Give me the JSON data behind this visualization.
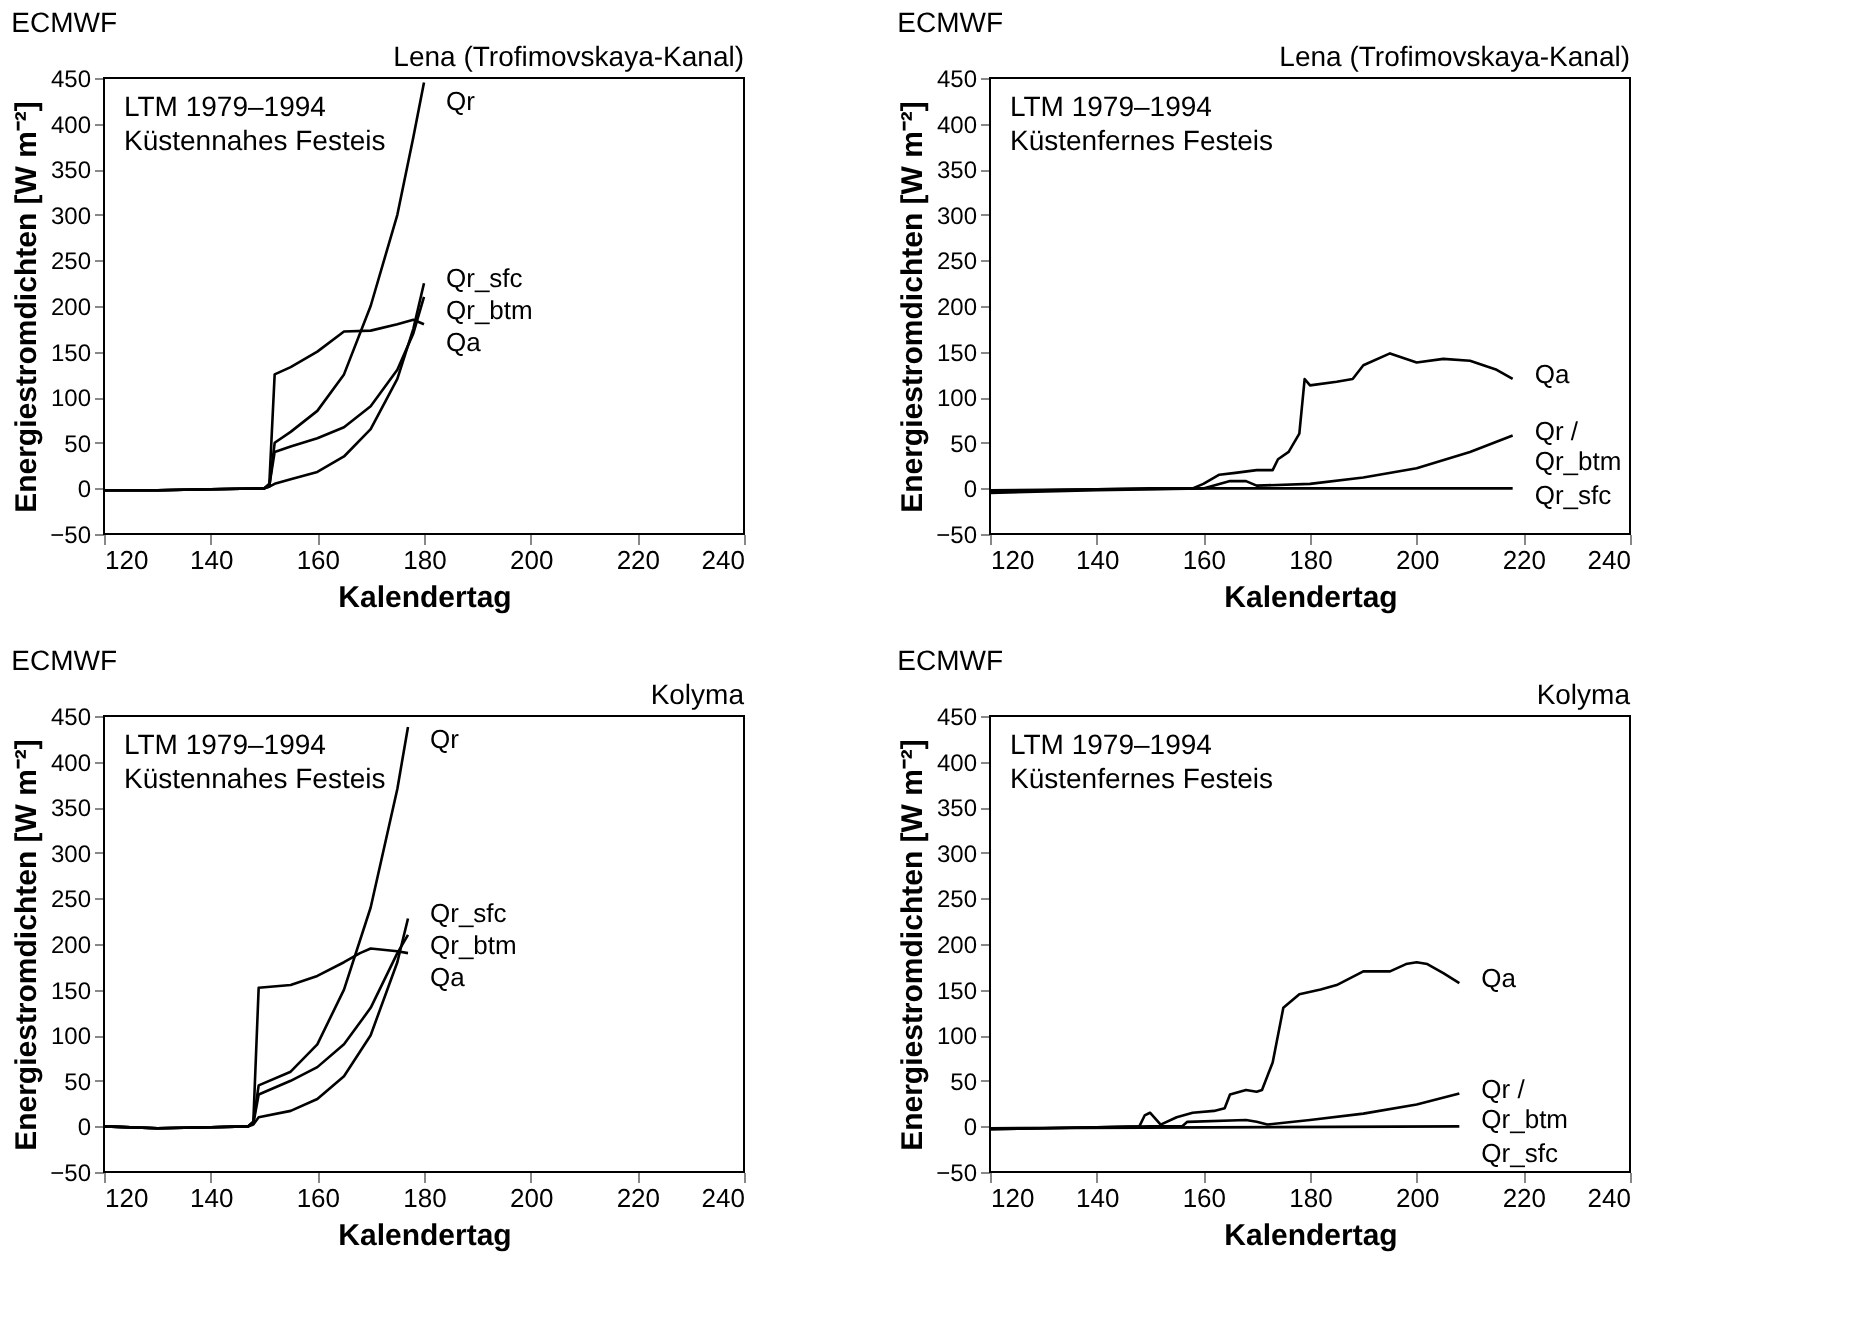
{
  "chart_data": [
    {
      "type": "line",
      "title": "ECMWF",
      "subtitle": "Lena (Trofimovskaya-Kanal)",
      "xlabel": "Kalendertag",
      "ylabel": "Energiestromdichten [W m⁻²]",
      "annotations": [
        "LTM 1979–1994",
        "Küstennahes Festeis"
      ],
      "xlim": [
        120,
        240
      ],
      "ylim": [
        -50,
        450
      ],
      "xticks": [
        120,
        140,
        160,
        180,
        200,
        220,
        240
      ],
      "yticks": [
        -50,
        0,
        50,
        100,
        150,
        200,
        250,
        300,
        350,
        400,
        450
      ],
      "grid": false,
      "legend": false,
      "series": [
        {
          "name": "Qr",
          "color": "#000000",
          "x": [
            120,
            130,
            140,
            150,
            151,
            152,
            155,
            160,
            165,
            170,
            175,
            178,
            180
          ],
          "values": [
            -2,
            -2,
            -1,
            0,
            2,
            50,
            62,
            85,
            125,
            200,
            300,
            385,
            445
          ]
        },
        {
          "name": "Qa",
          "color": "#000000",
          "x": [
            120,
            130,
            140,
            150,
            151,
            152,
            155,
            160,
            165,
            170,
            175,
            178,
            180
          ],
          "values": [
            -2,
            -2,
            -1,
            0,
            5,
            125,
            133,
            150,
            172,
            173,
            180,
            185,
            180
          ]
        },
        {
          "name": "Qr_btm",
          "color": "#000000",
          "x": [
            120,
            130,
            140,
            150,
            151,
            152,
            155,
            160,
            165,
            170,
            175,
            178,
            180
          ],
          "values": [
            -2,
            -2,
            -1,
            0,
            3,
            40,
            46,
            55,
            67,
            90,
            130,
            170,
            210
          ]
        },
        {
          "name": "Qr_sfc",
          "color": "#000000",
          "x": [
            120,
            130,
            140,
            150,
            151,
            152,
            155,
            160,
            165,
            170,
            175,
            178,
            180
          ],
          "values": [
            -2,
            -2,
            -1,
            0,
            2,
            5,
            10,
            18,
            35,
            65,
            120,
            175,
            225
          ]
        }
      ]
    },
    {
      "type": "line",
      "title": "ECMWF",
      "subtitle": "Lena (Trofimovskaya-Kanal)",
      "xlabel": "Kalendertag",
      "ylabel": "Energiestromdichten [W m⁻²]",
      "annotations": [
        "LTM 1979–1994",
        "Küstenfernes Festeis"
      ],
      "xlim": [
        120,
        240
      ],
      "ylim": [
        -50,
        450
      ],
      "xticks": [
        120,
        140,
        160,
        180,
        200,
        220,
        240
      ],
      "yticks": [
        -50,
        0,
        50,
        100,
        150,
        200,
        250,
        300,
        350,
        400,
        450
      ],
      "grid": false,
      "legend": false,
      "series": [
        {
          "name": "Qa",
          "color": "#000000",
          "x": [
            120,
            140,
            150,
            158,
            160,
            163,
            166,
            170,
            173,
            174,
            176,
            178,
            179,
            180,
            185,
            188,
            190,
            195,
            200,
            205,
            210,
            215,
            218
          ],
          "values": [
            -3,
            -1,
            0,
            0,
            5,
            15,
            17,
            20,
            20,
            32,
            40,
            60,
            120,
            113,
            117,
            120,
            135,
            148,
            138,
            142,
            140,
            130,
            120
          ]
        },
        {
          "name": "Qr / Qr_btm",
          "color": "#000000",
          "x": [
            120,
            140,
            160,
            165,
            168,
            170,
            180,
            190,
            200,
            210,
            218
          ],
          "values": [
            -5,
            -2,
            0,
            8,
            8,
            3,
            5,
            12,
            22,
            40,
            58
          ]
        },
        {
          "name": "Qr_sfc",
          "color": "#000000",
          "x": [
            120,
            160,
            218
          ],
          "values": [
            -2,
            0,
            0
          ]
        }
      ]
    },
    {
      "type": "line",
      "title": "ECMWF",
      "subtitle": "Kolyma",
      "xlabel": "Kalendertag",
      "ylabel": "Energiestromdichten [W m⁻²]",
      "annotations": [
        "LTM 1979–1994",
        "Küstennahes Festeis"
      ],
      "xlim": [
        120,
        240
      ],
      "ylim": [
        -50,
        450
      ],
      "xticks": [
        120,
        140,
        160,
        180,
        200,
        220,
        240
      ],
      "yticks": [
        -50,
        0,
        50,
        100,
        150,
        200,
        250,
        300,
        350,
        400,
        450
      ],
      "grid": false,
      "legend": false,
      "series": [
        {
          "name": "Qr",
          "color": "#000000",
          "x": [
            120,
            130,
            140,
            147,
            148,
            149,
            155,
            160,
            165,
            170,
            175,
            177
          ],
          "values": [
            0,
            -2,
            -1,
            0,
            5,
            45,
            60,
            90,
            150,
            240,
            370,
            438
          ]
        },
        {
          "name": "Qa",
          "color": "#000000",
          "x": [
            120,
            130,
            140,
            147,
            148,
            149,
            155,
            160,
            165,
            168,
            170,
            175,
            177
          ],
          "values": [
            0,
            -2,
            -1,
            0,
            5,
            152,
            155,
            165,
            180,
            190,
            195,
            192,
            190
          ]
        },
        {
          "name": "Qr_btm",
          "color": "#000000",
          "x": [
            120,
            130,
            140,
            147,
            148,
            149,
            155,
            160,
            165,
            170,
            175,
            177
          ],
          "values": [
            0,
            -2,
            -1,
            0,
            3,
            35,
            50,
            65,
            90,
            130,
            190,
            210
          ]
        },
        {
          "name": "Qr_sfc",
          "color": "#000000",
          "x": [
            120,
            130,
            140,
            147,
            148,
            149,
            155,
            160,
            165,
            170,
            175,
            177
          ],
          "values": [
            0,
            -2,
            -1,
            0,
            2,
            10,
            17,
            30,
            55,
            100,
            180,
            228
          ]
        }
      ]
    },
    {
      "type": "line",
      "title": "ECMWF",
      "subtitle": "Kolyma",
      "xlabel": "Kalendertag",
      "ylabel": "Energiestromdichten [W m⁻²]",
      "annotations": [
        "LTM 1979–1994",
        "Küstenfernes Festeis"
      ],
      "xlim": [
        120,
        240
      ],
      "ylim": [
        -50,
        450
      ],
      "xticks": [
        120,
        140,
        160,
        180,
        200,
        220,
        240
      ],
      "yticks": [
        -50,
        0,
        50,
        100,
        150,
        200,
        250,
        300,
        350,
        400,
        450
      ],
      "grid": false,
      "legend": false,
      "series": [
        {
          "name": "Qa",
          "color": "#000000",
          "x": [
            120,
            140,
            148,
            149,
            150,
            152,
            155,
            158,
            162,
            164,
            165,
            168,
            170,
            171,
            173,
            175,
            178,
            182,
            185,
            190,
            195,
            198,
            200,
            202,
            205,
            208
          ],
          "values": [
            -3,
            -1,
            0,
            12,
            15,
            2,
            10,
            15,
            17,
            20,
            35,
            40,
            38,
            40,
            70,
            130,
            145,
            150,
            155,
            170,
            170,
            178,
            180,
            178,
            168,
            157
          ]
        },
        {
          "name": "Qr / Qr_btm",
          "color": "#000000",
          "x": [
            120,
            150,
            156,
            157,
            168,
            170,
            172,
            180,
            190,
            200,
            208
          ],
          "values": [
            -3,
            0,
            0,
            5,
            7,
            5,
            2,
            7,
            14,
            24,
            36
          ]
        },
        {
          "name": "Qr_sfc",
          "color": "#000000",
          "x": [
            120,
            208
          ],
          "values": [
            -2,
            0
          ]
        }
      ]
    }
  ]
}
